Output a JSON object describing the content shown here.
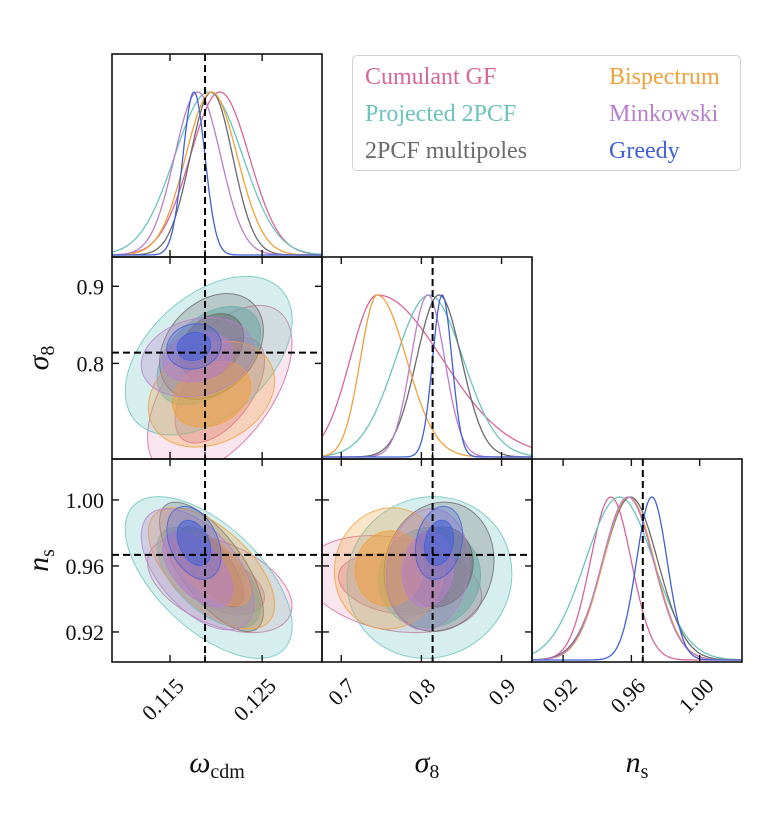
{
  "chart_data": {
    "type": "corner",
    "title": "",
    "parameters": [
      {
        "key": "omega_cdm",
        "label": "ω",
        "label_sub": "cdm",
        "range": [
          0.1087,
          0.1315
        ],
        "ticks": [
          0.115,
          0.125
        ],
        "tick_labels": [
          "0.115",
          "0.125"
        ],
        "fiducial": 0.1188
      },
      {
        "key": "sigma8",
        "label": "σ",
        "label_sub": "8",
        "range": [
          0.676,
          0.938
        ],
        "ticks": [
          0.7,
          0.8,
          0.9
        ],
        "tick_labels": [
          "0.7",
          "0.8",
          "0.9"
        ],
        "y_ticks": [
          0.8,
          0.9
        ],
        "y_tick_labels": [
          "0.8",
          "0.9"
        ],
        "fiducial": 0.814
      },
      {
        "key": "n_s",
        "label": "n",
        "label_sub": "s",
        "range": [
          0.9018,
          1.0248
        ],
        "ticks": [
          0.92,
          0.96,
          1.0
        ],
        "tick_labels": [
          "0.92",
          "0.96",
          "1.00"
        ],
        "fiducial": 0.9667
      }
    ],
    "series": [
      {
        "name": "Cumulant GF",
        "color": "#d6669a",
        "mean": [
          0.1204,
          0.765,
          0.949
        ],
        "sigma": [
          0.0032,
          0.045,
          0.012
        ],
        "peak": [
          0.1204,
          0.745,
          0.948
        ],
        "skew": [
          0,
          1.6,
          0
        ],
        "corr": {
          "omega_cdm-sigma8": 0.55,
          "omega_cdm-n_s": -0.45,
          "sigma8-n_s": -0.25
        },
        "filled": false
      },
      {
        "name": "Projected 2PCF",
        "color": "#6cc3bd",
        "mean": [
          0.1192,
          0.81,
          0.953
        ],
        "sigma": [
          0.0037,
          0.042,
          0.02
        ],
        "peak": [
          0.1192,
          0.81,
          0.953
        ],
        "skew": [
          0,
          0,
          0
        ],
        "corr": {
          "omega_cdm-sigma8": 0.45,
          "omega_cdm-n_s": -0.6,
          "sigma8-n_s": 0.05
        },
        "filled": true
      },
      {
        "name": "2PCF multipoles",
        "color": "#6b6b6b",
        "mean": [
          0.1195,
          0.822,
          0.9595
        ],
        "sigma": [
          0.0023,
          0.028,
          0.016
        ],
        "peak": [
          0.1195,
          0.822,
          0.9595
        ],
        "skew": [
          0,
          0,
          0
        ],
        "corr": {
          "omega_cdm-sigma8": 0.3,
          "omega_cdm-n_s": -0.7,
          "sigma8-n_s": 0.1
        },
        "filled": true
      },
      {
        "name": "Bispectrum",
        "color": "#f0a03c",
        "mean": [
          0.1195,
          0.76,
          0.9585
        ],
        "sigma": [
          0.0028,
          0.028,
          0.015
        ],
        "peak": [
          0.1195,
          0.745,
          0.9585
        ],
        "skew": [
          0,
          0.6,
          0
        ],
        "corr": {
          "omega_cdm-sigma8": 0.25,
          "omega_cdm-n_s": -0.6,
          "sigma8-n_s": 0.05
        },
        "filled": true
      },
      {
        "name": "Minkowski",
        "color": "#b67fcc",
        "mean": [
          0.118,
          0.808,
          0.958
        ],
        "sigma": [
          0.0025,
          0.021,
          0.015
        ],
        "peak": [
          0.118,
          0.808,
          0.958
        ],
        "skew": [
          0,
          0,
          0
        ],
        "corr": {
          "omega_cdm-sigma8": 0.2,
          "omega_cdm-n_s": -0.55,
          "sigma8-n_s": 0.1
        },
        "filled": true
      },
      {
        "name": "Greedy",
        "color": "#4060d8",
        "mean": [
          0.1176,
          0.822,
          0.974
        ],
        "sigma": [
          0.0012,
          0.012,
          0.009
        ],
        "peak": [
          0.1176,
          0.826,
          0.972
        ],
        "skew": [
          0,
          0,
          0
        ],
        "corr": {
          "omega_cdm-sigma8": 0.1,
          "omega_cdm-n_s": -0.35,
          "sigma8-n_s": 0.2
        },
        "filled": true
      }
    ],
    "legend": {
      "position": "top-right",
      "columns": 2,
      "entries": [
        "Cumulant GF",
        "Projected 2PCF",
        "2PCF multipoles",
        "Bispectrum",
        "Minkowski",
        "Greedy"
      ]
    },
    "fiducial_line_style": "dashed-black",
    "contour_levels": [
      "68%",
      "95%"
    ],
    "grid": false
  }
}
